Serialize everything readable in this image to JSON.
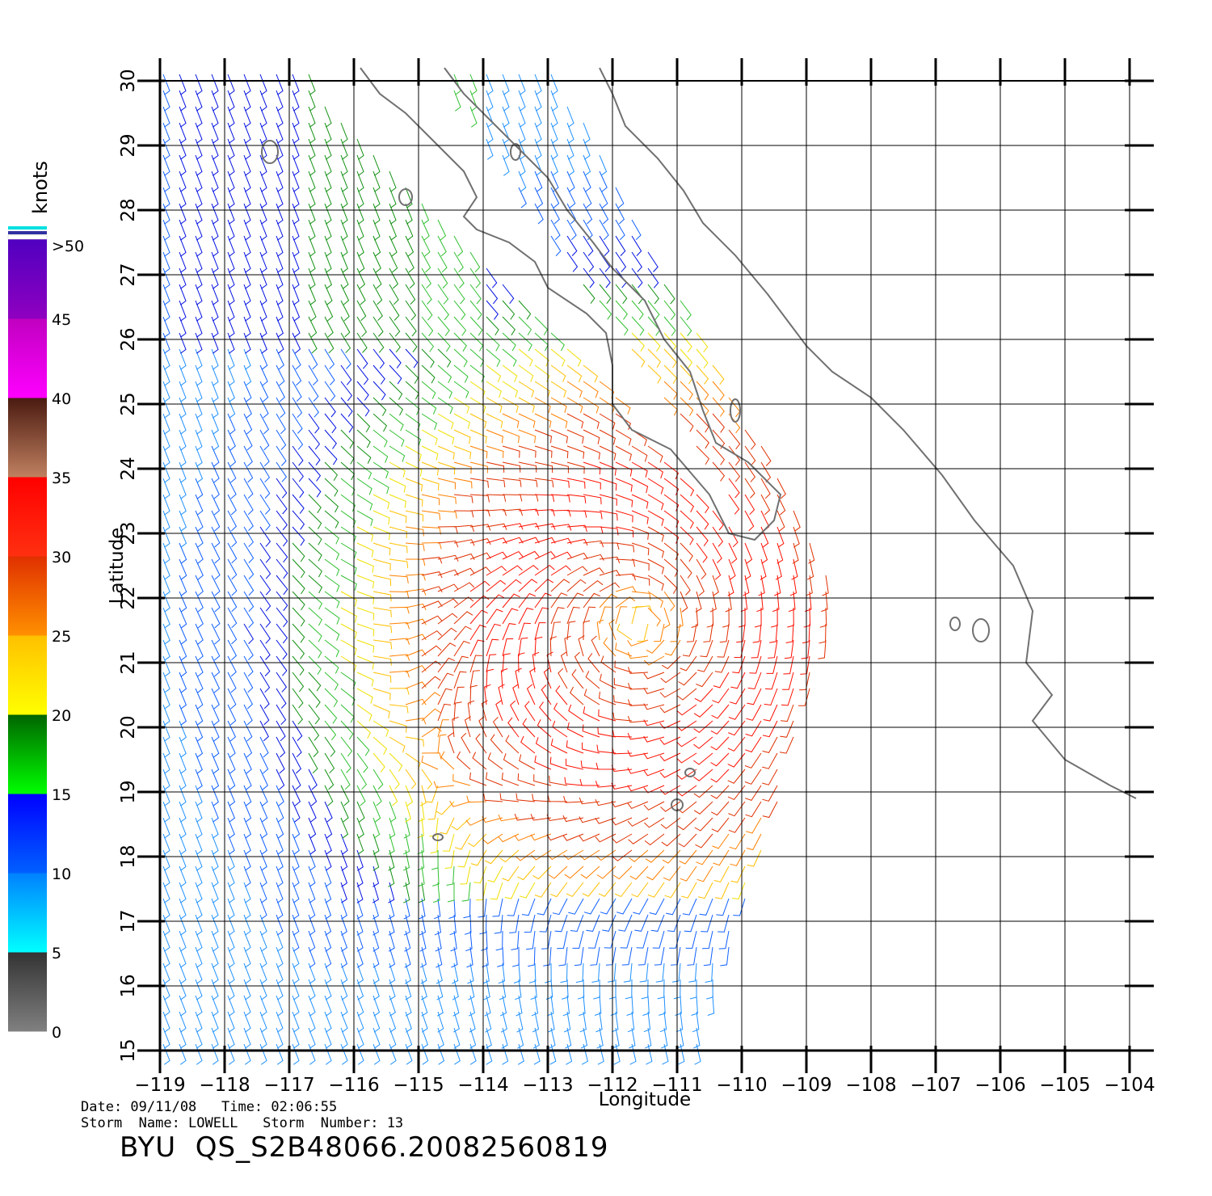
{
  "map": {
    "region": "Baja California / Gulf of California, Eastern Pacific",
    "longitude_ticks": [
      -119,
      -118,
      -117,
      -116,
      -115,
      -114,
      -113,
      -112,
      -111,
      -110,
      -109,
      -108,
      -107,
      -106,
      -105,
      -104
    ],
    "latitude_ticks": [
      15,
      16,
      17,
      18,
      19,
      20,
      21,
      22,
      23,
      24,
      25,
      26,
      27,
      28,
      29,
      30
    ],
    "xlabel": "Longitude",
    "ylabel": "Latitude",
    "lon_range": [
      -119,
      -104
    ],
    "lat_range": [
      15,
      30
    ],
    "grid": true,
    "storm_center": {
      "lon": -111.6,
      "lat": 21.6
    }
  },
  "legend": {
    "title": "knots",
    "bands": [
      {
        "label": "0",
        "from": 0,
        "to": 5,
        "top": "#333333",
        "bottom": "#808080"
      },
      {
        "label": "5",
        "from": 5,
        "to": 10,
        "top": "#0080ff",
        "bottom": "#00ffff"
      },
      {
        "label": "10",
        "from": 10,
        "to": 15,
        "top": "#0000ff",
        "bottom": "#0060ff"
      },
      {
        "label": "15",
        "from": 15,
        "to": 20,
        "top": "#006400",
        "bottom": "#00ff00"
      },
      {
        "label": "20",
        "from": 20,
        "to": 25,
        "top": "#ffc000",
        "bottom": "#ffff00"
      },
      {
        "label": "25",
        "from": 25,
        "to": 30,
        "top": "#e03000",
        "bottom": "#ff9000"
      },
      {
        "label": "30",
        "from": 30,
        "to": 35,
        "top": "#ff0000",
        "bottom": "#ff3010"
      },
      {
        "label": "35",
        "from": 35,
        "to": 40,
        "top": "#4a1a10",
        "bottom": "#c08060"
      },
      {
        "label": "40",
        "from": 40,
        "to": 45,
        "top": "#c000c0",
        "bottom": "#ff00ff"
      },
      {
        "label": "45",
        "from": 45,
        "to": 50,
        "top": "#5000c0",
        "bottom": "#9000c0"
      }
    ],
    "top_label": ">50"
  },
  "footer": {
    "date_line": "Date: 09/11/08   Time: 02:06:55",
    "storm_line": "Storm  Name: LOWELL   Storm  Number: 13",
    "product": "BYU  QS_S2B48066.20082560819"
  },
  "colors": {
    "coast": "#707070",
    "grid": "#000000"
  }
}
